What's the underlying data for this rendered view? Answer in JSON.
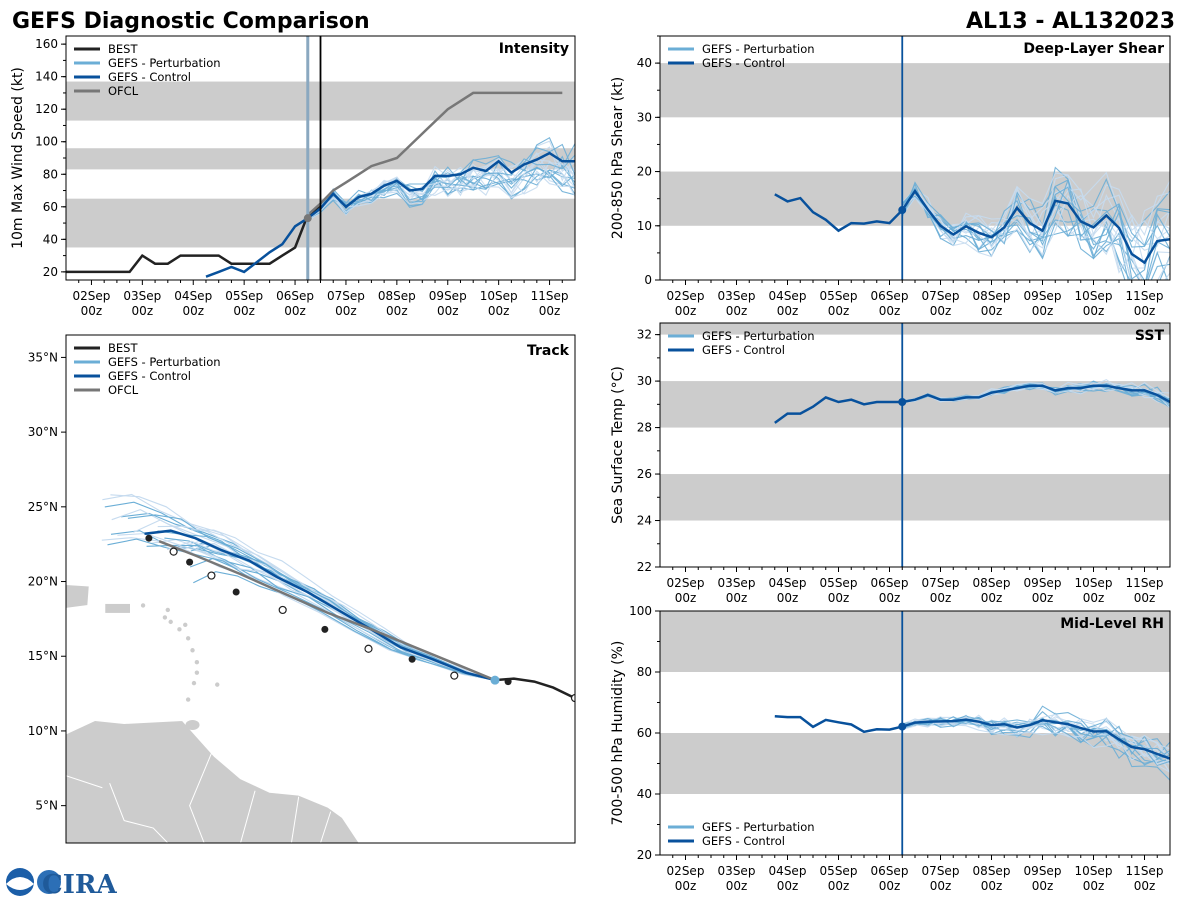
{
  "header": {
    "left_title": "GEFS Diagnostic Comparison",
    "right_title": "AL13 - AL132023"
  },
  "logo": {
    "text": "CIRA"
  },
  "colors": {
    "best": "#222222",
    "perturbation": "#6baed6",
    "perturbation_light": "#c6dbef",
    "control": "#08519c",
    "ofcl": "#777777",
    "band": "#cccccc",
    "land": "#cccccc"
  },
  "time_axis": {
    "labels": [
      [
        "02Sep",
        "00z"
      ],
      [
        "03Sep",
        "00z"
      ],
      [
        "04Sep",
        "00z"
      ],
      [
        "05Sep",
        "00z"
      ],
      [
        "06Sep",
        "00z"
      ],
      [
        "07Sep",
        "00z"
      ],
      [
        "08Sep",
        "00z"
      ],
      [
        "09Sep",
        "00z"
      ],
      [
        "10Sep",
        "00z"
      ],
      [
        "11Sep",
        "00z"
      ]
    ]
  },
  "chart_data": [
    {
      "id": "intensity",
      "type": "line",
      "title": "Intensity",
      "ylabel": "10m Max Wind Speed (kt)",
      "xlim_days": [
        1.5,
        11.5
      ],
      "ylim": [
        15,
        165
      ],
      "yticks": [
        20,
        40,
        60,
        80,
        100,
        120,
        140,
        160
      ],
      "bands": [
        [
          35,
          65
        ],
        [
          83,
          96
        ],
        [
          113,
          137
        ]
      ],
      "vlines": [
        6.25,
        6.5
      ],
      "legend": [
        "BEST",
        "GEFS - Perturbation",
        "GEFS - Control",
        "OFCL"
      ],
      "series": [
        {
          "name": "BEST",
          "x": [
            1.5,
            2.25,
            2.75,
            3.0,
            3.25,
            3.5,
            3.75,
            4.0,
            4.25,
            4.5,
            4.75,
            5.0,
            5.25,
            5.5,
            5.75,
            6.0,
            6.25,
            6.5
          ],
          "y": [
            20,
            20,
            20,
            30,
            25,
            25,
            30,
            30,
            30,
            30,
            25,
            25,
            25,
            25,
            30,
            35,
            55,
            60
          ]
        },
        {
          "name": "GEFS - Control",
          "x": [
            4.25,
            4.5,
            4.75,
            5.0,
            5.25,
            5.5,
            5.75,
            6.0,
            6.25,
            6.5,
            6.75,
            7.0,
            7.25,
            7.5,
            7.75,
            8.0,
            8.25,
            8.5,
            8.75,
            9.0,
            9.25,
            9.5,
            9.75,
            10.0,
            10.25,
            10.5,
            10.75,
            11.0,
            11.25,
            11.5
          ],
          "y": [
            17,
            20,
            23,
            20,
            26,
            32,
            37,
            48,
            53,
            59,
            68,
            60,
            66,
            68,
            73,
            76,
            70,
            71,
            79,
            79,
            80,
            84,
            82,
            88,
            81,
            86,
            89,
            93,
            88,
            88
          ]
        },
        {
          "name": "OFCL",
          "x": [
            6.25,
            6.5,
            6.75,
            7.0,
            7.25,
            7.5,
            8.0,
            8.5,
            9.0,
            9.25,
            9.5,
            10.0,
            10.5,
            11.0,
            11.25
          ],
          "y": [
            55,
            62,
            70,
            75,
            80,
            85,
            90,
            105,
            120,
            125,
            130,
            130,
            130,
            130,
            130
          ]
        }
      ]
    },
    {
      "id": "shear",
      "type": "line",
      "title": "Deep-Layer Shear",
      "ylabel": "200-850 hPa Shear (kt)",
      "xlim_days": [
        1.5,
        11.5
      ],
      "ylim": [
        0,
        45
      ],
      "yticks": [
        0,
        10,
        20,
        30,
        40
      ],
      "bands": [
        [
          10,
          20
        ],
        [
          30,
          40
        ]
      ],
      "vlines": [
        6.25
      ],
      "legend": [
        "GEFS - Perturbation",
        "GEFS - Control"
      ],
      "series": [
        {
          "name": "GEFS - Control",
          "x": [
            3.75,
            4.0,
            4.25,
            4.5,
            4.75,
            5.0,
            5.25,
            5.5,
            5.75,
            6.0,
            6.25,
            6.5,
            6.75,
            7.0,
            7.25,
            7.5,
            7.75,
            8.0,
            8.25,
            8.5,
            8.75,
            9.0,
            9.25,
            9.5,
            9.75,
            10.0,
            10.25,
            10.5,
            10.75,
            11.0,
            11.25,
            11.5
          ],
          "y": [
            15.8,
            14.5,
            15.1,
            12.5,
            11.1,
            9.1,
            10.5,
            10.4,
            10.8,
            10.5,
            12.9,
            16.4,
            13.0,
            10.0,
            8.4,
            9.9,
            8.7,
            7.9,
            9.7,
            13.3,
            10.5,
            9.1,
            14.6,
            14.1,
            10.8,
            9.7,
            11.9,
            9.6,
            4.8,
            3.2,
            7.2,
            7.5
          ]
        }
      ]
    },
    {
      "id": "sst",
      "type": "line",
      "title": "SST",
      "ylabel": "Sea Surface Temp (°C)",
      "xlim_days": [
        1.5,
        11.5
      ],
      "ylim": [
        22,
        32.5
      ],
      "yticks": [
        22,
        24,
        26,
        28,
        30,
        32
      ],
      "bands": [
        [
          24,
          26
        ],
        [
          28,
          30
        ],
        [
          32,
          33
        ]
      ],
      "vlines": [
        6.25
      ],
      "legend": [
        "GEFS - Perturbation",
        "GEFS - Control"
      ],
      "series": [
        {
          "name": "GEFS - Control",
          "x": [
            3.75,
            4.0,
            4.25,
            4.5,
            4.75,
            5.0,
            5.25,
            5.5,
            5.75,
            6.0,
            6.25,
            6.5,
            6.75,
            7.0,
            7.25,
            7.5,
            7.75,
            8.0,
            8.25,
            8.5,
            8.75,
            9.0,
            9.25,
            9.5,
            9.75,
            10.0,
            10.25,
            10.5,
            10.75,
            11.0,
            11.25,
            11.5
          ],
          "y": [
            28.2,
            28.6,
            28.6,
            28.9,
            29.3,
            29.1,
            29.2,
            29.0,
            29.1,
            29.1,
            29.1,
            29.2,
            29.4,
            29.2,
            29.2,
            29.3,
            29.3,
            29.5,
            29.6,
            29.7,
            29.8,
            29.8,
            29.6,
            29.7,
            29.7,
            29.8,
            29.8,
            29.7,
            29.6,
            29.6,
            29.4,
            29.1
          ]
        }
      ]
    },
    {
      "id": "rh",
      "type": "line",
      "title": "Mid-Level RH",
      "ylabel": "700-500 hPa Humidity (%)",
      "xlim_days": [
        1.5,
        11.5
      ],
      "ylim": [
        20,
        100
      ],
      "yticks": [
        20,
        40,
        60,
        80,
        100
      ],
      "bands": [
        [
          40,
          60
        ],
        [
          80,
          100
        ]
      ],
      "vlines": [
        6.25
      ],
      "legend": [
        "GEFS - Perturbation",
        "GEFS - Control"
      ],
      "series": [
        {
          "name": "GEFS - Control",
          "x": [
            3.75,
            4.0,
            4.25,
            4.5,
            4.75,
            5.0,
            5.25,
            5.5,
            5.75,
            6.0,
            6.25,
            6.5,
            6.75,
            7.0,
            7.25,
            7.5,
            7.75,
            8.0,
            8.25,
            8.5,
            8.75,
            9.0,
            9.25,
            9.5,
            9.75,
            10.0,
            10.25,
            10.5,
            10.75,
            11.0,
            11.25,
            11.5
          ],
          "y": [
            65.5,
            65.2,
            65.2,
            62.0,
            64.3,
            63.5,
            62.8,
            60.4,
            61.2,
            61.1,
            62.1,
            63.4,
            63.7,
            63.8,
            63.9,
            64.4,
            63.7,
            62.6,
            62.9,
            61.8,
            62.6,
            64.2,
            63.5,
            62.9,
            61.6,
            60.5,
            60.6,
            57.9,
            55.4,
            54.7,
            53.1,
            51.6
          ]
        }
      ]
    },
    {
      "id": "track",
      "type": "line",
      "title": "Track",
      "xlim_lon": [
        -70,
        -35
      ],
      "ylim_lat": [
        2.5,
        36.5
      ],
      "yticks_labels": [
        "5°N",
        "10°N",
        "15°N",
        "20°N",
        "25°N",
        "30°N",
        "35°N"
      ],
      "yticks_values": [
        5,
        10,
        15,
        20,
        25,
        30,
        35
      ],
      "legend": [
        "BEST",
        "GEFS - Perturbation",
        "GEFS - Control",
        "OFCL"
      ],
      "series": [
        {
          "name": "BEST",
          "lon": [
            -35,
            -36.5,
            -37.8,
            -39.2,
            -40.5
          ],
          "lat": [
            12.2,
            12.9,
            13.3,
            13.5,
            13.4
          ]
        },
        {
          "name": "GEFS - Control",
          "lon": [
            -40.5,
            -42.5,
            -44.8,
            -47.0,
            -49.2,
            -51.3,
            -53.4,
            -55.5,
            -57.4,
            -59.3,
            -61.1,
            -62.8,
            -64.6
          ],
          "lat": [
            13.4,
            13.9,
            14.8,
            15.6,
            16.9,
            18.1,
            19.3,
            20.3,
            21.4,
            22.1,
            22.9,
            23.4,
            23.2
          ]
        },
        {
          "name": "OFCL",
          "lon": [
            -40.5,
            -43,
            -46,
            -49,
            -52,
            -55,
            -58,
            -61,
            -63.6
          ],
          "lat": [
            13.4,
            14.4,
            15.6,
            16.8,
            17.9,
            19.2,
            20.5,
            21.7,
            22.7
          ]
        }
      ],
      "markers_filled": [
        [
          -46.2,
          14.8
        ],
        [
          -52.2,
          16.8
        ],
        [
          -58.3,
          19.3
        ],
        [
          -61.5,
          21.3
        ],
        [
          -64.3,
          22.9
        ],
        [
          -39.6,
          13.3
        ]
      ],
      "markers_open": [
        [
          -35,
          12.2
        ],
        [
          -43.3,
          13.7
        ],
        [
          -49.2,
          15.5
        ],
        [
          -55.1,
          18.1
        ],
        [
          -60.0,
          20.4
        ],
        [
          -62.6,
          22.0
        ]
      ]
    }
  ]
}
